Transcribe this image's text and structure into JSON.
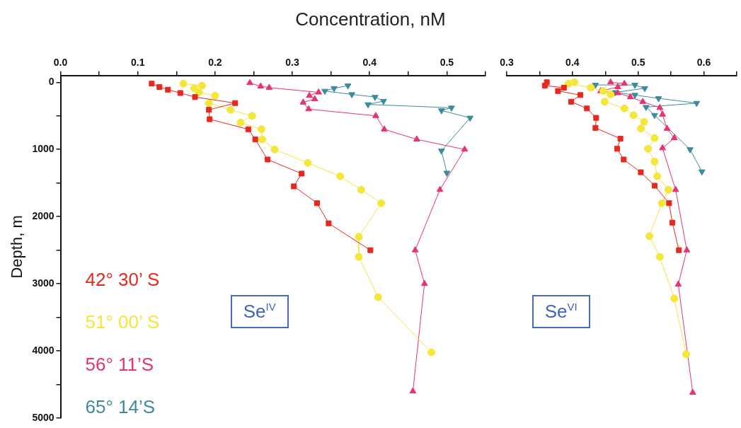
{
  "chart_data": [
    {
      "type": "line",
      "title": "Concentration, nM",
      "ylabel": "Depth, m",
      "legend": "bottom left",
      "annotations": [
        "Se$^{IV}$"
      ],
      "xlim": [
        0,
        0.55
      ],
      "xticks": [
        {
          "value": 0,
          "label": "0.0"
        },
        {
          "value": 0.05,
          "label": null
        },
        {
          "value": 0.1,
          "label": "0.1"
        },
        {
          "value": 0.15,
          "label": null
        },
        {
          "value": 0.2,
          "label": "0.2"
        },
        {
          "value": 0.25,
          "label": null
        },
        {
          "value": 0.3,
          "label": "0.3"
        },
        {
          "value": 0.35,
          "label": null
        },
        {
          "value": 0.4,
          "label": "0.4"
        },
        {
          "value": 0.45,
          "label": null
        },
        {
          "value": 0.5,
          "label": "0.5"
        },
        {
          "value": 0.55,
          "label": null
        }
      ],
      "ylim": [
        5000,
        -100
      ],
      "yticks": [
        0,
        {
          "value": 500,
          "label": null
        },
        1000,
        {
          "value": 1500,
          "label": null
        },
        2000,
        {
          "value": 2500,
          "label": null
        },
        3000,
        {
          "value": 3500,
          "label": null
        },
        4000,
        {
          "value": 4500,
          "label": null
        },
        5000
      ],
      "series": [
        {
          "name": "42° 30’ S",
          "color": "#e8281e",
          "marker": "square",
          "x": [
            0.118,
            0.128,
            0.139,
            0.155,
            0.174,
            0.226,
            0.192,
            0.193,
            0.243,
            0.252,
            0.268,
            0.312,
            0.302,
            0.332,
            0.347,
            0.401
          ],
          "values": [
            20,
            70,
            110,
            160,
            220,
            310,
            410,
            550,
            700,
            850,
            1150,
            1360,
            1550,
            1800,
            2100,
            2500
          ]
        },
        {
          "name": "51° 00’ S",
          "color": "#f5e63a",
          "marker": "circle",
          "x": [
            0.159,
            0.183,
            0.173,
            0.179,
            0.2,
            0.192,
            0.22,
            0.248,
            0.233,
            0.26,
            0.261,
            0.277,
            0.32,
            0.362,
            0.389,
            0.415,
            0.386,
            0.386,
            0.411,
            0.48
          ],
          "values": [
            20,
            50,
            90,
            150,
            200,
            310,
            410,
            500,
            600,
            700,
            850,
            1000,
            1200,
            1400,
            1600,
            1800,
            2300,
            2600,
            3200,
            4020
          ]
        },
        {
          "name": "56° 11’S",
          "color": "#e8336f",
          "marker": "triangle",
          "x": [
            0.245,
            0.259,
            0.27,
            0.334,
            0.322,
            0.329,
            0.314,
            0.321,
            0.408,
            0.419,
            0.461,
            0.523,
            0.491,
            0.459,
            0.471,
            0.456
          ],
          "values": [
            10,
            60,
            80,
            150,
            200,
            250,
            300,
            400,
            500,
            700,
            850,
            1000,
            1600,
            2500,
            3000,
            4600
          ]
        },
        {
          "name": "65° 14’S",
          "color": "#3d8a9b",
          "marker": "triangle-down",
          "x": [
            0.372,
            0.354,
            0.342,
            0.377,
            0.407,
            0.418,
            0.398,
            0.506,
            0.493,
            0.53,
            0.493,
            0.5
          ],
          "values": [
            50,
            90,
            130,
            180,
            220,
            280,
            330,
            380,
            420,
            530,
            1020,
            1350
          ]
        }
      ]
    },
    {
      "type": "line",
      "tick_labels": "x",
      "annotations": [
        "Se$^{VI}$"
      ],
      "xlim": [
        0.3,
        0.65
      ],
      "xticks": [
        {
          "value": 0.3,
          "label": "0.3"
        },
        {
          "value": 0.35,
          "label": null
        },
        {
          "value": 0.4,
          "label": "0.4"
        },
        {
          "value": 0.45,
          "label": null
        },
        {
          "value": 0.5,
          "label": "0.5"
        },
        {
          "value": 0.55,
          "label": null
        },
        {
          "value": 0.6,
          "label": "0.6"
        },
        {
          "value": 0.65,
          "label": null
        }
      ],
      "ylim": [
        5000,
        -100
      ],
      "series": [
        {
          "color": "#e8281e",
          "marker": "square",
          "x": [
            0.361,
            0.358,
            0.387,
            0.378,
            0.412,
            0.398,
            0.422,
            0.436,
            0.435,
            0.473,
            0.468,
            0.478,
            0.504,
            0.525,
            0.547,
            0.552,
            0.562
          ],
          "values": [
            0,
            50,
            80,
            130,
            190,
            290,
            390,
            530,
            680,
            840,
            990,
            1150,
            1340,
            1540,
            1800,
            2090,
            2500
          ]
        },
        {
          "color": "#f5e63a",
          "marker": "circle",
          "x": [
            0.403,
            0.394,
            0.428,
            0.447,
            0.458,
            0.449,
            0.479,
            0.493,
            0.509,
            0.504,
            0.525,
            0.515,
            0.525,
            0.529,
            0.546,
            0.536,
            0.517,
            0.533,
            0.555,
            0.573
          ],
          "values": [
            0,
            20,
            80,
            130,
            180,
            290,
            390,
            490,
            590,
            690,
            830,
            990,
            1180,
            1400,
            1600,
            1800,
            2290,
            2600,
            3220,
            4050
          ]
        },
        {
          "color": "#e8336f",
          "marker": "triangle",
          "x": [
            0.458,
            0.479,
            0.469,
            0.443,
            0.469,
            0.488,
            0.507,
            0.533,
            0.537,
            0.544,
            0.555,
            0.537,
            0.557,
            0.574,
            0.561,
            0.583
          ],
          "values": [
            0,
            20,
            70,
            130,
            160,
            220,
            290,
            380,
            480,
            690,
            830,
            980,
            1600,
            2500,
            3010,
            4620
          ]
        },
        {
          "color": "#3d8a9b",
          "marker": "triangle-down",
          "x": [
            0.435,
            0.495,
            0.51,
            0.465,
            0.495,
            0.531,
            0.589,
            0.512,
            0.525,
            0.579,
            0.597
          ],
          "values": [
            40,
            40,
            90,
            150,
            190,
            240,
            310,
            370,
            490,
            1000,
            1330
          ]
        }
      ]
    }
  ]
}
